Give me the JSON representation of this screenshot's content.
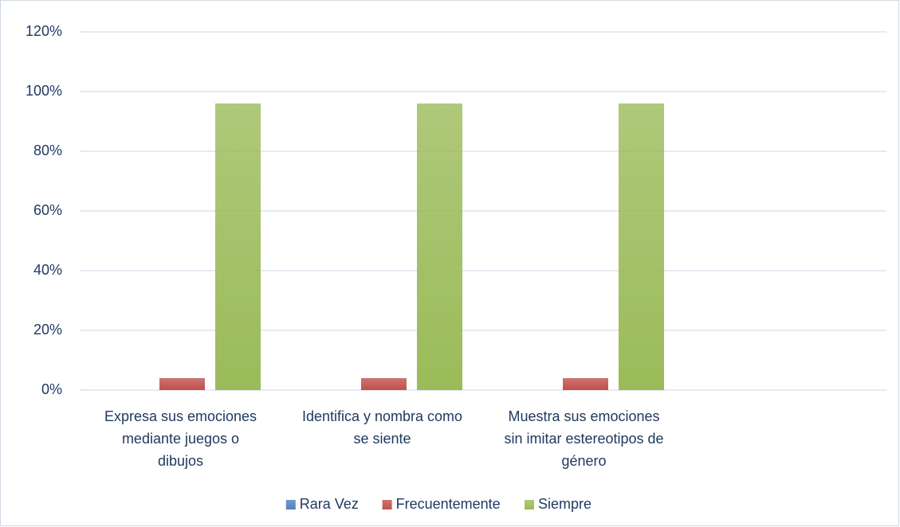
{
  "chart_data": {
    "type": "bar",
    "categories": [
      "Expresa sus emociones\nmediante juegos o\ndibujos",
      "Identifica y nombra como\nse siente",
      "Muestra sus emociones\nsin imitar estereotipos de\ngénero",
      null
    ],
    "series": [
      {
        "name": "Rara Vez",
        "color": "#4f81bd",
        "values": [
          0,
          0,
          0,
          null
        ]
      },
      {
        "name": "Frecuentemente",
        "color": "#c0504d",
        "values": [
          4,
          4,
          4,
          null
        ]
      },
      {
        "name": "Siempre",
        "color": "#9bbb59",
        "values": [
          96,
          96,
          96,
          null
        ]
      }
    ],
    "ylim": [
      0,
      120
    ],
    "yticks": [
      {
        "value": 0,
        "label": "0%"
      },
      {
        "value": 20,
        "label": "20%"
      },
      {
        "value": 40,
        "label": "40%"
      },
      {
        "value": 60,
        "label": "60%"
      },
      {
        "value": 80,
        "label": "80%"
      },
      {
        "value": 100,
        "label": "100%"
      },
      {
        "value": 120,
        "label": "120%"
      }
    ],
    "grid": true,
    "legend": "bottom"
  }
}
